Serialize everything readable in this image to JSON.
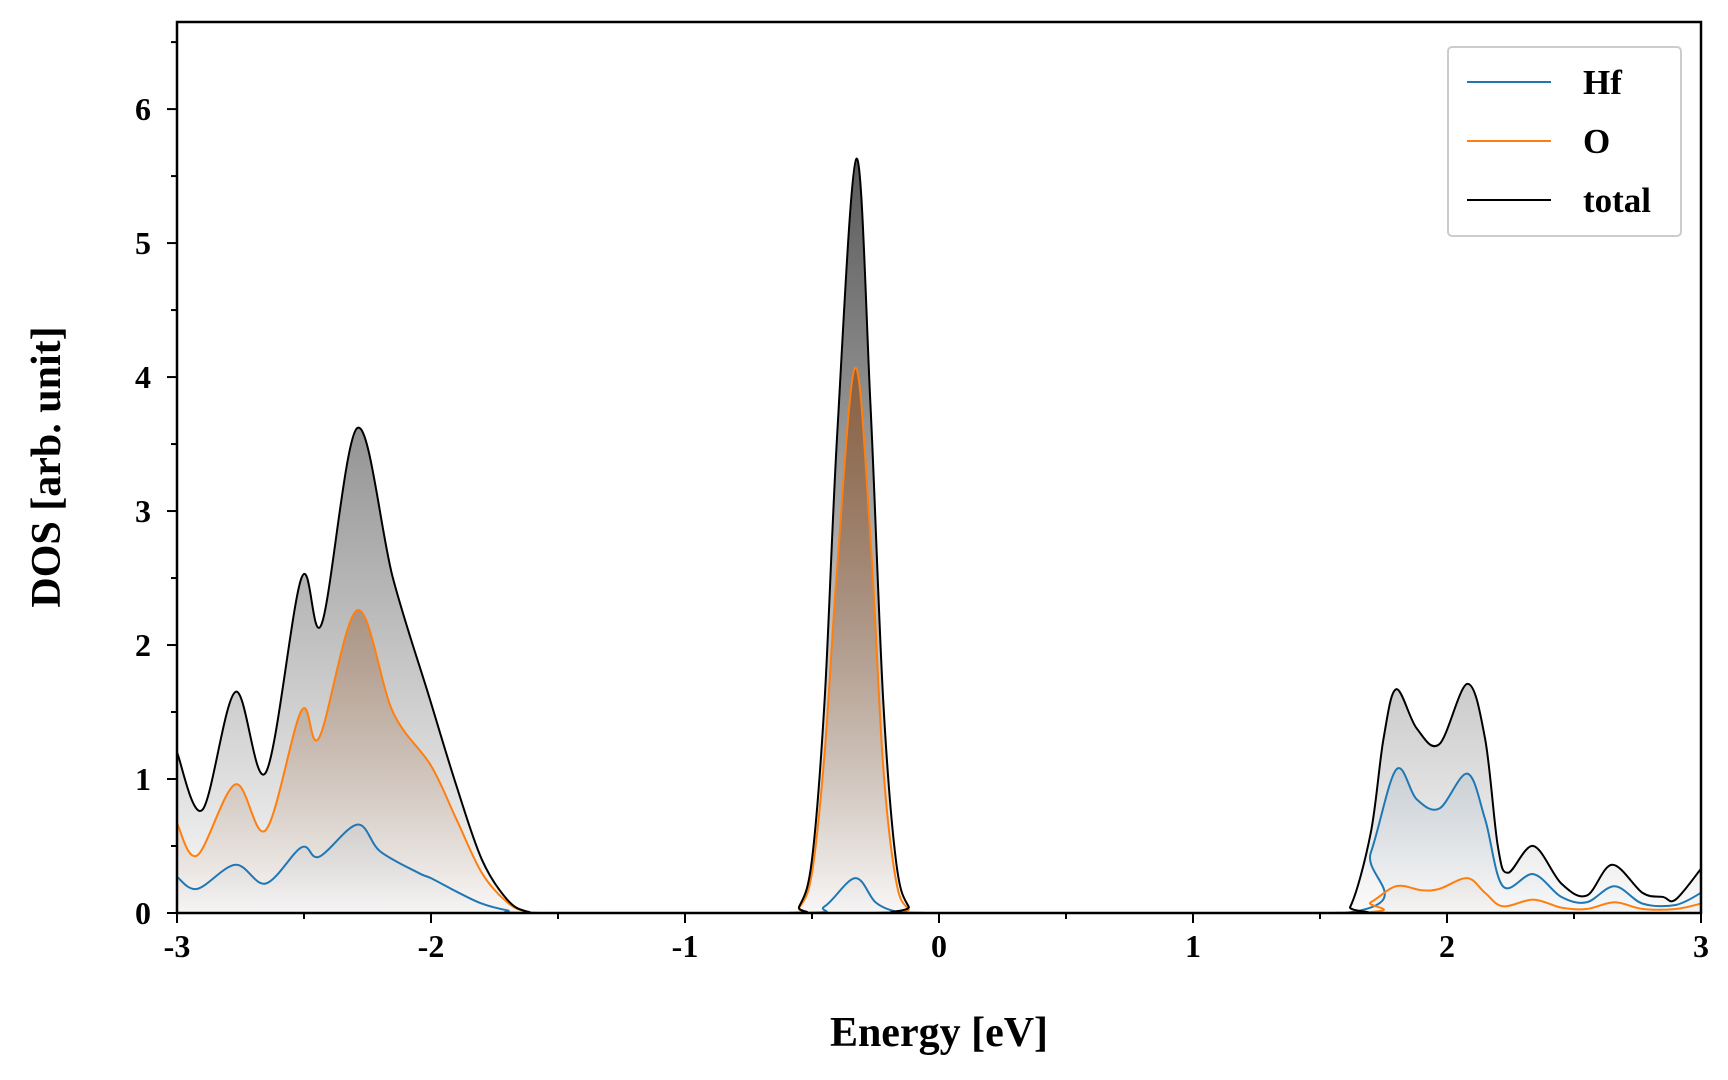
{
  "chart_data": {
    "type": "area",
    "xlabel": "Energy [eV]",
    "ylabel": "DOS [arb. unit]",
    "xlim": [
      -3,
      3
    ],
    "ylim": [
      0,
      6.65
    ],
    "xticks": [
      -3,
      -2,
      -1,
      0,
      1,
      2,
      3
    ],
    "xtick_labels": [
      "-3",
      "-2",
      "-1",
      "0",
      "1",
      "2",
      "3"
    ],
    "yticks": [
      0,
      1,
      2,
      3,
      4,
      5,
      6
    ],
    "ytick_labels": [
      "0",
      "1",
      "2",
      "3",
      "4",
      "5",
      "6"
    ],
    "grid": false,
    "legend_position": "top-right",
    "series": [
      {
        "name": "Hf",
        "color": "#1f77b4",
        "fill": "#6f8fae",
        "points": [
          [
            -3,
            0.27
          ],
          [
            -2.92,
            0.18
          ],
          [
            -2.77,
            0.36
          ],
          [
            -2.65,
            0.22
          ],
          [
            -2.51,
            0.49
          ],
          [
            -2.44,
            0.42
          ],
          [
            -2.29,
            0.66
          ],
          [
            -2.2,
            0.46
          ],
          [
            -2.05,
            0.3
          ],
          [
            -2.0,
            0.26
          ],
          [
            -1.9,
            0.16
          ],
          [
            -1.8,
            0.07
          ],
          [
            -1.7,
            0.02
          ],
          [
            -1.6,
            0
          ],
          [
            -0.55,
            0
          ],
          [
            -0.45,
            0.05
          ],
          [
            -0.33,
            0.26
          ],
          [
            -0.25,
            0.08
          ],
          [
            -0.17,
            0.01
          ],
          [
            -0.1,
            0
          ],
          [
            1.6,
            0
          ],
          [
            1.7,
            0.45
          ],
          [
            1.8,
            1.07
          ],
          [
            1.88,
            0.85
          ],
          [
            1.97,
            0.78
          ],
          [
            2.08,
            1.04
          ],
          [
            2.15,
            0.7
          ],
          [
            2.22,
            0.2
          ],
          [
            2.34,
            0.29
          ],
          [
            2.45,
            0.12
          ],
          [
            2.55,
            0.08
          ],
          [
            2.66,
            0.2
          ],
          [
            2.77,
            0.07
          ],
          [
            2.9,
            0.06
          ],
          [
            3.0,
            0.15
          ]
        ]
      },
      {
        "name": "O",
        "color": "#ff7f0e",
        "fill": "#8b4513",
        "points": [
          [
            -3,
            0.67
          ],
          [
            -2.92,
            0.43
          ],
          [
            -2.77,
            0.96
          ],
          [
            -2.65,
            0.62
          ],
          [
            -2.51,
            1.51
          ],
          [
            -2.44,
            1.31
          ],
          [
            -2.29,
            2.26
          ],
          [
            -2.15,
            1.5
          ],
          [
            -2.0,
            1.1
          ],
          [
            -1.9,
            0.7
          ],
          [
            -1.8,
            0.3
          ],
          [
            -1.7,
            0.08
          ],
          [
            -1.62,
            0.01
          ],
          [
            -1.5,
            0
          ],
          [
            -0.6,
            0
          ],
          [
            -0.55,
            0.04
          ],
          [
            -0.5,
            0.3
          ],
          [
            -0.45,
            1.2
          ],
          [
            -0.4,
            2.6
          ],
          [
            -0.33,
            4.07
          ],
          [
            -0.27,
            2.8
          ],
          [
            -0.22,
            1.1
          ],
          [
            -0.17,
            0.25
          ],
          [
            -0.12,
            0.03
          ],
          [
            -0.05,
            0
          ],
          [
            1.6,
            0
          ],
          [
            1.7,
            0.08
          ],
          [
            1.8,
            0.2
          ],
          [
            1.9,
            0.17
          ],
          [
            1.97,
            0.18
          ],
          [
            2.08,
            0.26
          ],
          [
            2.15,
            0.15
          ],
          [
            2.22,
            0.05
          ],
          [
            2.34,
            0.1
          ],
          [
            2.45,
            0.04
          ],
          [
            2.55,
            0.03
          ],
          [
            2.66,
            0.08
          ],
          [
            2.77,
            0.03
          ],
          [
            2.9,
            0.03
          ],
          [
            3.0,
            0.07
          ]
        ]
      },
      {
        "name": "total",
        "color": "#000000",
        "fill": "#333333",
        "points": [
          [
            -3,
            1.2
          ],
          [
            -2.9,
            0.77
          ],
          [
            -2.77,
            1.65
          ],
          [
            -2.65,
            1.05
          ],
          [
            -2.51,
            2.5
          ],
          [
            -2.43,
            2.16
          ],
          [
            -2.29,
            3.62
          ],
          [
            -2.15,
            2.5
          ],
          [
            -2.01,
            1.63
          ],
          [
            -1.9,
            0.95
          ],
          [
            -1.8,
            0.4
          ],
          [
            -1.7,
            0.1
          ],
          [
            -1.62,
            0.01
          ],
          [
            -1.5,
            0
          ],
          [
            -0.6,
            0
          ],
          [
            -0.55,
            0.05
          ],
          [
            -0.5,
            0.4
          ],
          [
            -0.45,
            1.6
          ],
          [
            -0.4,
            3.6
          ],
          [
            -0.325,
            5.63
          ],
          [
            -0.27,
            3.8
          ],
          [
            -0.22,
            1.6
          ],
          [
            -0.17,
            0.4
          ],
          [
            -0.12,
            0.05
          ],
          [
            -0.05,
            0
          ],
          [
            1.55,
            0
          ],
          [
            1.62,
            0.05
          ],
          [
            1.7,
            0.6
          ],
          [
            1.75,
            1.3
          ],
          [
            1.8,
            1.67
          ],
          [
            1.88,
            1.38
          ],
          [
            1.97,
            1.26
          ],
          [
            2.08,
            1.71
          ],
          [
            2.15,
            1.3
          ],
          [
            2.2,
            0.5
          ],
          [
            2.24,
            0.3
          ],
          [
            2.34,
            0.5
          ],
          [
            2.45,
            0.22
          ],
          [
            2.55,
            0.13
          ],
          [
            2.65,
            0.36
          ],
          [
            2.77,
            0.15
          ],
          [
            2.85,
            0.12
          ],
          [
            2.9,
            0.1
          ],
          [
            3.0,
            0.33
          ]
        ]
      }
    ]
  }
}
